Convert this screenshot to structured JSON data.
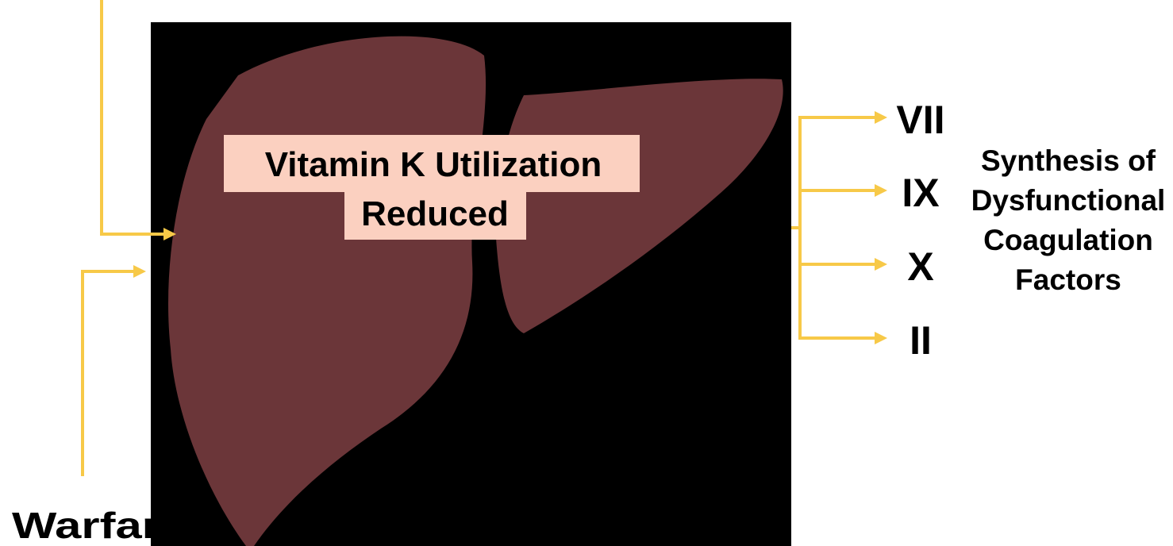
{
  "labels": {
    "effect": [
      "Vitamin K Utilization",
      "Reduced"
    ],
    "drug": "Warfarin",
    "factors": [
      "VII",
      "IX",
      "X",
      "II"
    ],
    "outcome": [
      "Synthesis of",
      "Dysfunctional",
      "Coagulation",
      "Factors"
    ]
  }
}
